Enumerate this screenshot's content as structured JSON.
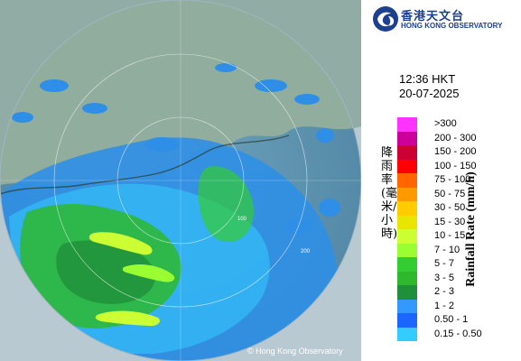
{
  "header": {
    "org_name_zh": "香港天文台",
    "org_name_en": "HONG KONG OBSERVATORY",
    "logo_icon": "hko-logo-icon"
  },
  "timestamp": {
    "time": "12:36 HKT",
    "date": "20-07-2025"
  },
  "legend": {
    "title_zh": "降雨率(毫米/小時)",
    "title_en": "Rainfall Rate (mm/h)",
    "items": [
      {
        "label": ">300",
        "color": "#ff33ff"
      },
      {
        "label": "200 - 300",
        "color": "#cc0099"
      },
      {
        "label": "150 - 200",
        "color": "#cc0033"
      },
      {
        "label": "100 - 150",
        "color": "#ff0000"
      },
      {
        "label": "75 - 100",
        "color": "#ff6600"
      },
      {
        "label": "50 - 75",
        "color": "#ff9900"
      },
      {
        "label": "30 - 50",
        "color": "#ffcc00"
      },
      {
        "label": "15 - 30",
        "color": "#e6e600"
      },
      {
        "label": "10 - 15",
        "color": "#ccff33"
      },
      {
        "label": "7 - 10",
        "color": "#99ff33"
      },
      {
        "label": "5 - 7",
        "color": "#33cc33"
      },
      {
        "label": "3 - 5",
        "color": "#2eb82e"
      },
      {
        "label": "2 - 3",
        "color": "#1f8f3a"
      },
      {
        "label": "1 - 2",
        "color": "#3399ff"
      },
      {
        "label": "0.50 - 1",
        "color": "#1a66ff"
      },
      {
        "label": "0.15 - 0.50",
        "color": "#33ccff"
      }
    ]
  },
  "map": {
    "ring_labels": [
      "100",
      "200"
    ],
    "copyright": "© Hong Kong Observatory"
  }
}
